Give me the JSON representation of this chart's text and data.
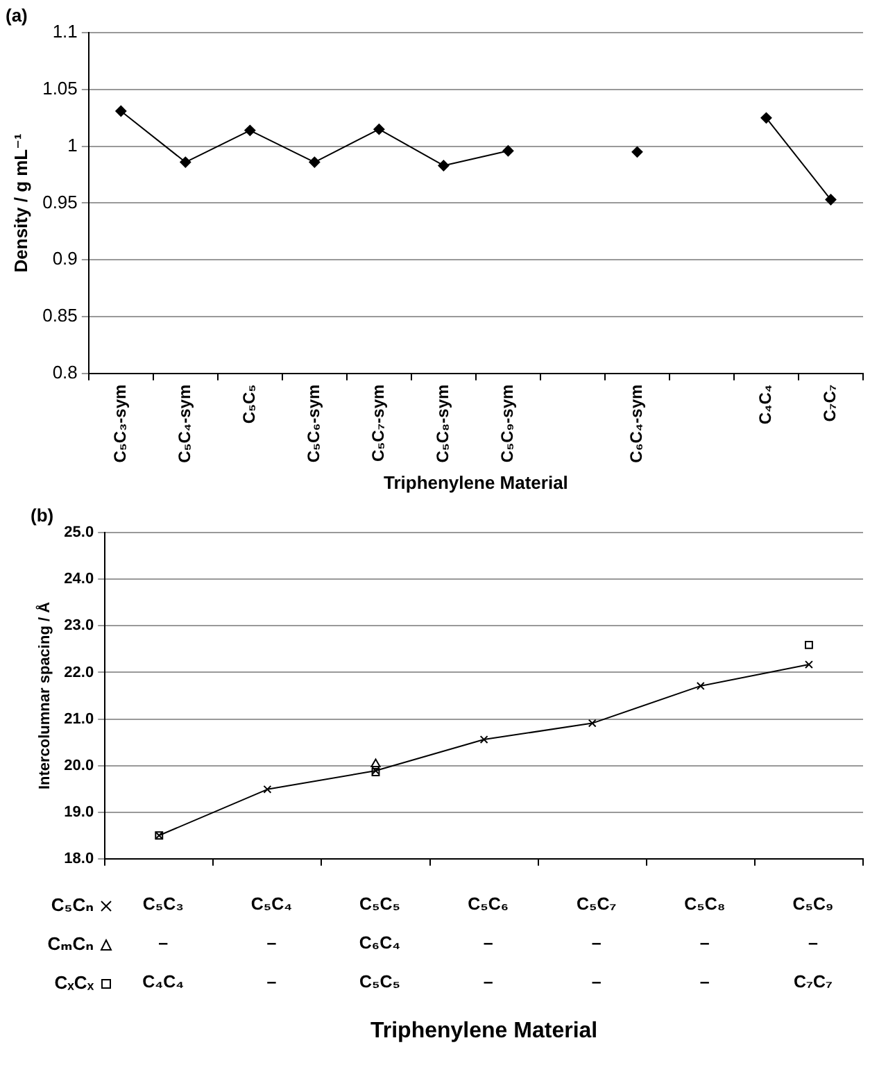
{
  "chart_data": [
    {
      "type": "line",
      "title": "(a)",
      "xlabel": "Triphenylene Material",
      "ylabel": "Density / g mL⁻¹",
      "categories": [
        "C₅C₃-sym",
        "C₅C₄-sym",
        "C₅C₅",
        "C₅C₆-sym",
        "C₅C₇-sym",
        "C₅C₈-sym",
        "C₅C₉-sym",
        null,
        "C₆C₄-sym",
        null,
        "C₄C₄",
        "C₇C₇"
      ],
      "series": [
        {
          "color": "#000000",
          "values": [
            1.031,
            0.986,
            1.014,
            0.986,
            1.015,
            0.983,
            0.996,
            null,
            0.995,
            null,
            1.025,
            0.953
          ]
        }
      ],
      "marker": "diamond",
      "line_style": "solid",
      "ylim": [
        0.8,
        1.1
      ],
      "yticks": [
        0.8,
        0.85,
        0.9,
        0.95,
        1,
        1.05,
        1.1
      ],
      "grid": "y"
    },
    {
      "type": "line",
      "title": "(b)",
      "xlabel": "Triphenylene Material",
      "ylabel": "Intercolumnar spacing / Å",
      "categories": [
        "C₅C₃",
        "C₅C₄",
        "C₅C₅",
        "C₅C₆",
        "C₅C₇",
        "C₅C₈",
        "C₅C₉"
      ],
      "series": [
        {
          "name": "C₅Cₙ",
          "type": "line",
          "marker": "cross",
          "color": "#000000",
          "values": [
            18.5,
            19.49,
            19.89,
            20.56,
            20.91,
            21.71,
            22.17
          ]
        },
        {
          "name": "CₘCₙ",
          "type": "scatter",
          "marker": "triangle",
          "color": "#000000",
          "values": [
            null,
            null,
            20.03,
            null,
            null,
            null,
            null
          ]
        },
        {
          "name": "CₓCₓ",
          "type": "scatter",
          "marker": "square",
          "color": "#000000",
          "values": [
            18.5,
            null,
            19.86,
            null,
            null,
            null,
            22.59
          ]
        }
      ],
      "annotations": [
        "–",
        "–",
        "C₆C₄",
        "–",
        "–",
        "–",
        "–",
        "C₄C₄",
        "–",
        "C₅C₅",
        "–",
        "–",
        "–",
        "C₇C₇"
      ],
      "ylim": [
        18,
        25
      ],
      "yticks": [
        {
          "value": 18,
          "label": "18.0"
        },
        {
          "value": 19,
          "label": "19.0"
        },
        {
          "value": 20,
          "label": "20.0"
        },
        {
          "value": 21,
          "label": "21.0"
        },
        {
          "value": 22,
          "label": "22.0"
        },
        {
          "value": 23,
          "label": "23.0"
        },
        {
          "value": 24,
          "label": "24.0"
        },
        {
          "value": 25,
          "label": "25.0"
        }
      ],
      "grid": "y",
      "legend": "bottom",
      "tick_labels": "y"
    }
  ]
}
